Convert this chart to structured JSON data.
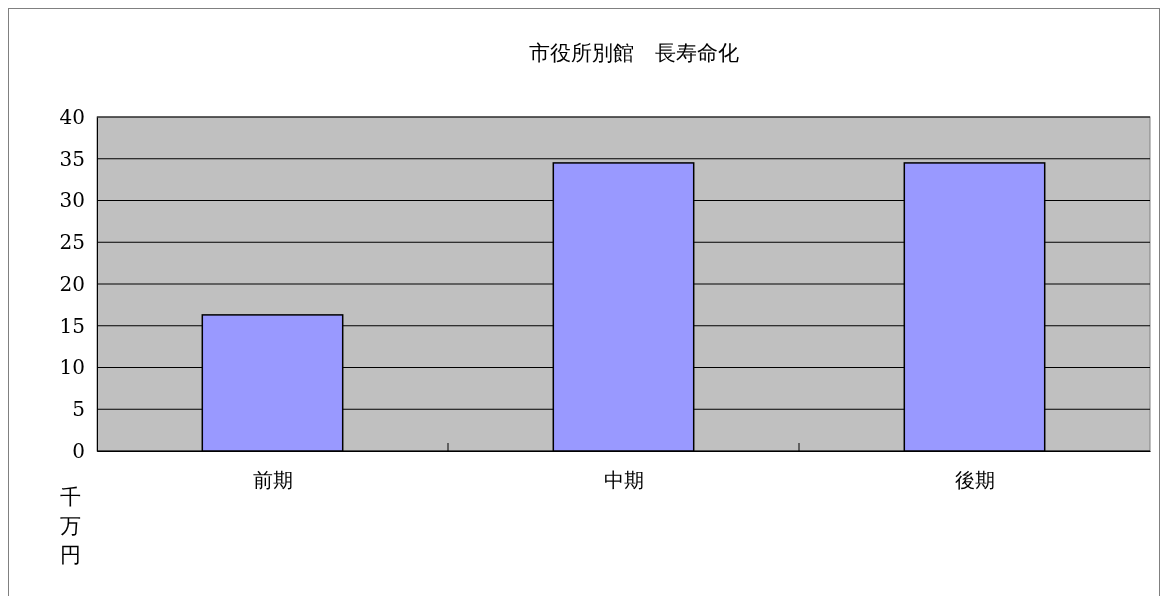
{
  "chart_data": {
    "type": "bar",
    "title": "市役所別館　長寿命化",
    "ylabel": "千万円",
    "categories": [
      "前期",
      "中期",
      "後期"
    ],
    "values": [
      16.3,
      34.5,
      34.5
    ],
    "color": "#9999ff",
    "ylim": [
      0,
      40
    ],
    "yticks": [
      0,
      5,
      10,
      15,
      20,
      25,
      30,
      35,
      40
    ],
    "grid": "y"
  }
}
